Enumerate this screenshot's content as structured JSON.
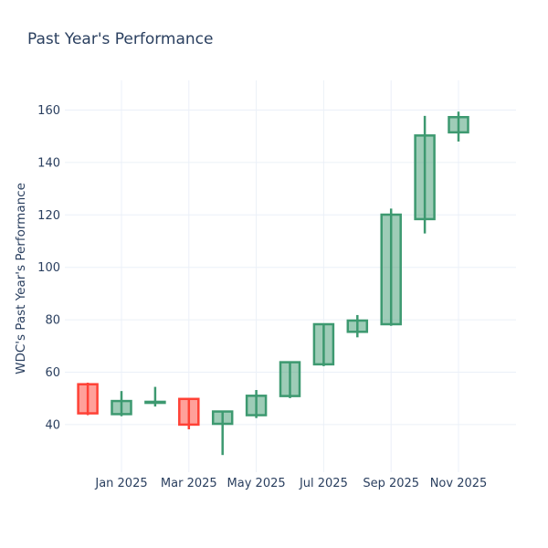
{
  "title": "Past Year's Performance",
  "colors": {
    "background": "#ffffff",
    "title_text": "#2a3f5f",
    "tick_text": "#2a3f5f",
    "grid": "#ebf0f8",
    "increasing_line": "#3D9970",
    "increasing_fill": "rgba(61,153,112,0.5)",
    "decreasing_line": "#FF4136",
    "decreasing_fill": "rgba(255,65,54,0.5)"
  },
  "chart_data": {
    "type": "candlestick",
    "title": "Past Year's Performance",
    "xlabel": "",
    "ylabel": "WDC's Past Year's Performance",
    "grid": true,
    "legend": "none",
    "y_ticks": [
      40,
      60,
      80,
      100,
      120,
      140,
      160
    ],
    "ylim": [
      22,
      170
    ],
    "x_tick_labels": [
      "Jan 2025",
      "Mar 2025",
      "May 2025",
      "Jul 2025",
      "Sep 2025",
      "Nov 2025"
    ],
    "x_tick_month_index": [
      1,
      3,
      5,
      7,
      9,
      11
    ],
    "candles": [
      {
        "label": "Dec 2024",
        "open": 55.4,
        "high": 56.0,
        "low": 43.6,
        "close": 44.3,
        "direction": "down"
      },
      {
        "label": "Jan 2025",
        "open": 44.0,
        "high": 52.8,
        "low": 43.2,
        "close": 49.0,
        "direction": "up"
      },
      {
        "label": "Feb 2025",
        "open": 48.3,
        "high": 54.4,
        "low": 46.9,
        "close": 48.7,
        "direction": "up"
      },
      {
        "label": "Mar 2025",
        "open": 49.8,
        "high": 50.0,
        "low": 38.2,
        "close": 40.0,
        "direction": "down"
      },
      {
        "label": "Apr 2025",
        "open": 40.3,
        "high": 45.2,
        "low": 28.4,
        "close": 45.0,
        "direction": "up"
      },
      {
        "label": "May 2025",
        "open": 43.6,
        "high": 53.2,
        "low": 42.5,
        "close": 51.0,
        "direction": "up"
      },
      {
        "label": "Jun 2025",
        "open": 50.9,
        "high": 64.0,
        "low": 50.1,
        "close": 63.8,
        "direction": "up"
      },
      {
        "label": "Jul 2025",
        "open": 63.0,
        "high": 78.4,
        "low": 62.3,
        "close": 78.3,
        "direction": "up"
      },
      {
        "label": "Aug 2025",
        "open": 75.4,
        "high": 81.8,
        "low": 73.3,
        "close": 79.7,
        "direction": "up"
      },
      {
        "label": "Sep 2025",
        "open": 78.3,
        "high": 122.4,
        "low": 77.7,
        "close": 120.1,
        "direction": "up"
      },
      {
        "label": "Oct 2025",
        "open": 118.4,
        "high": 157.8,
        "low": 112.9,
        "close": 150.3,
        "direction": "up"
      },
      {
        "label": "Nov 2025",
        "open": 151.5,
        "high": 159.4,
        "low": 148.0,
        "close": 157.3,
        "direction": "up"
      }
    ]
  }
}
